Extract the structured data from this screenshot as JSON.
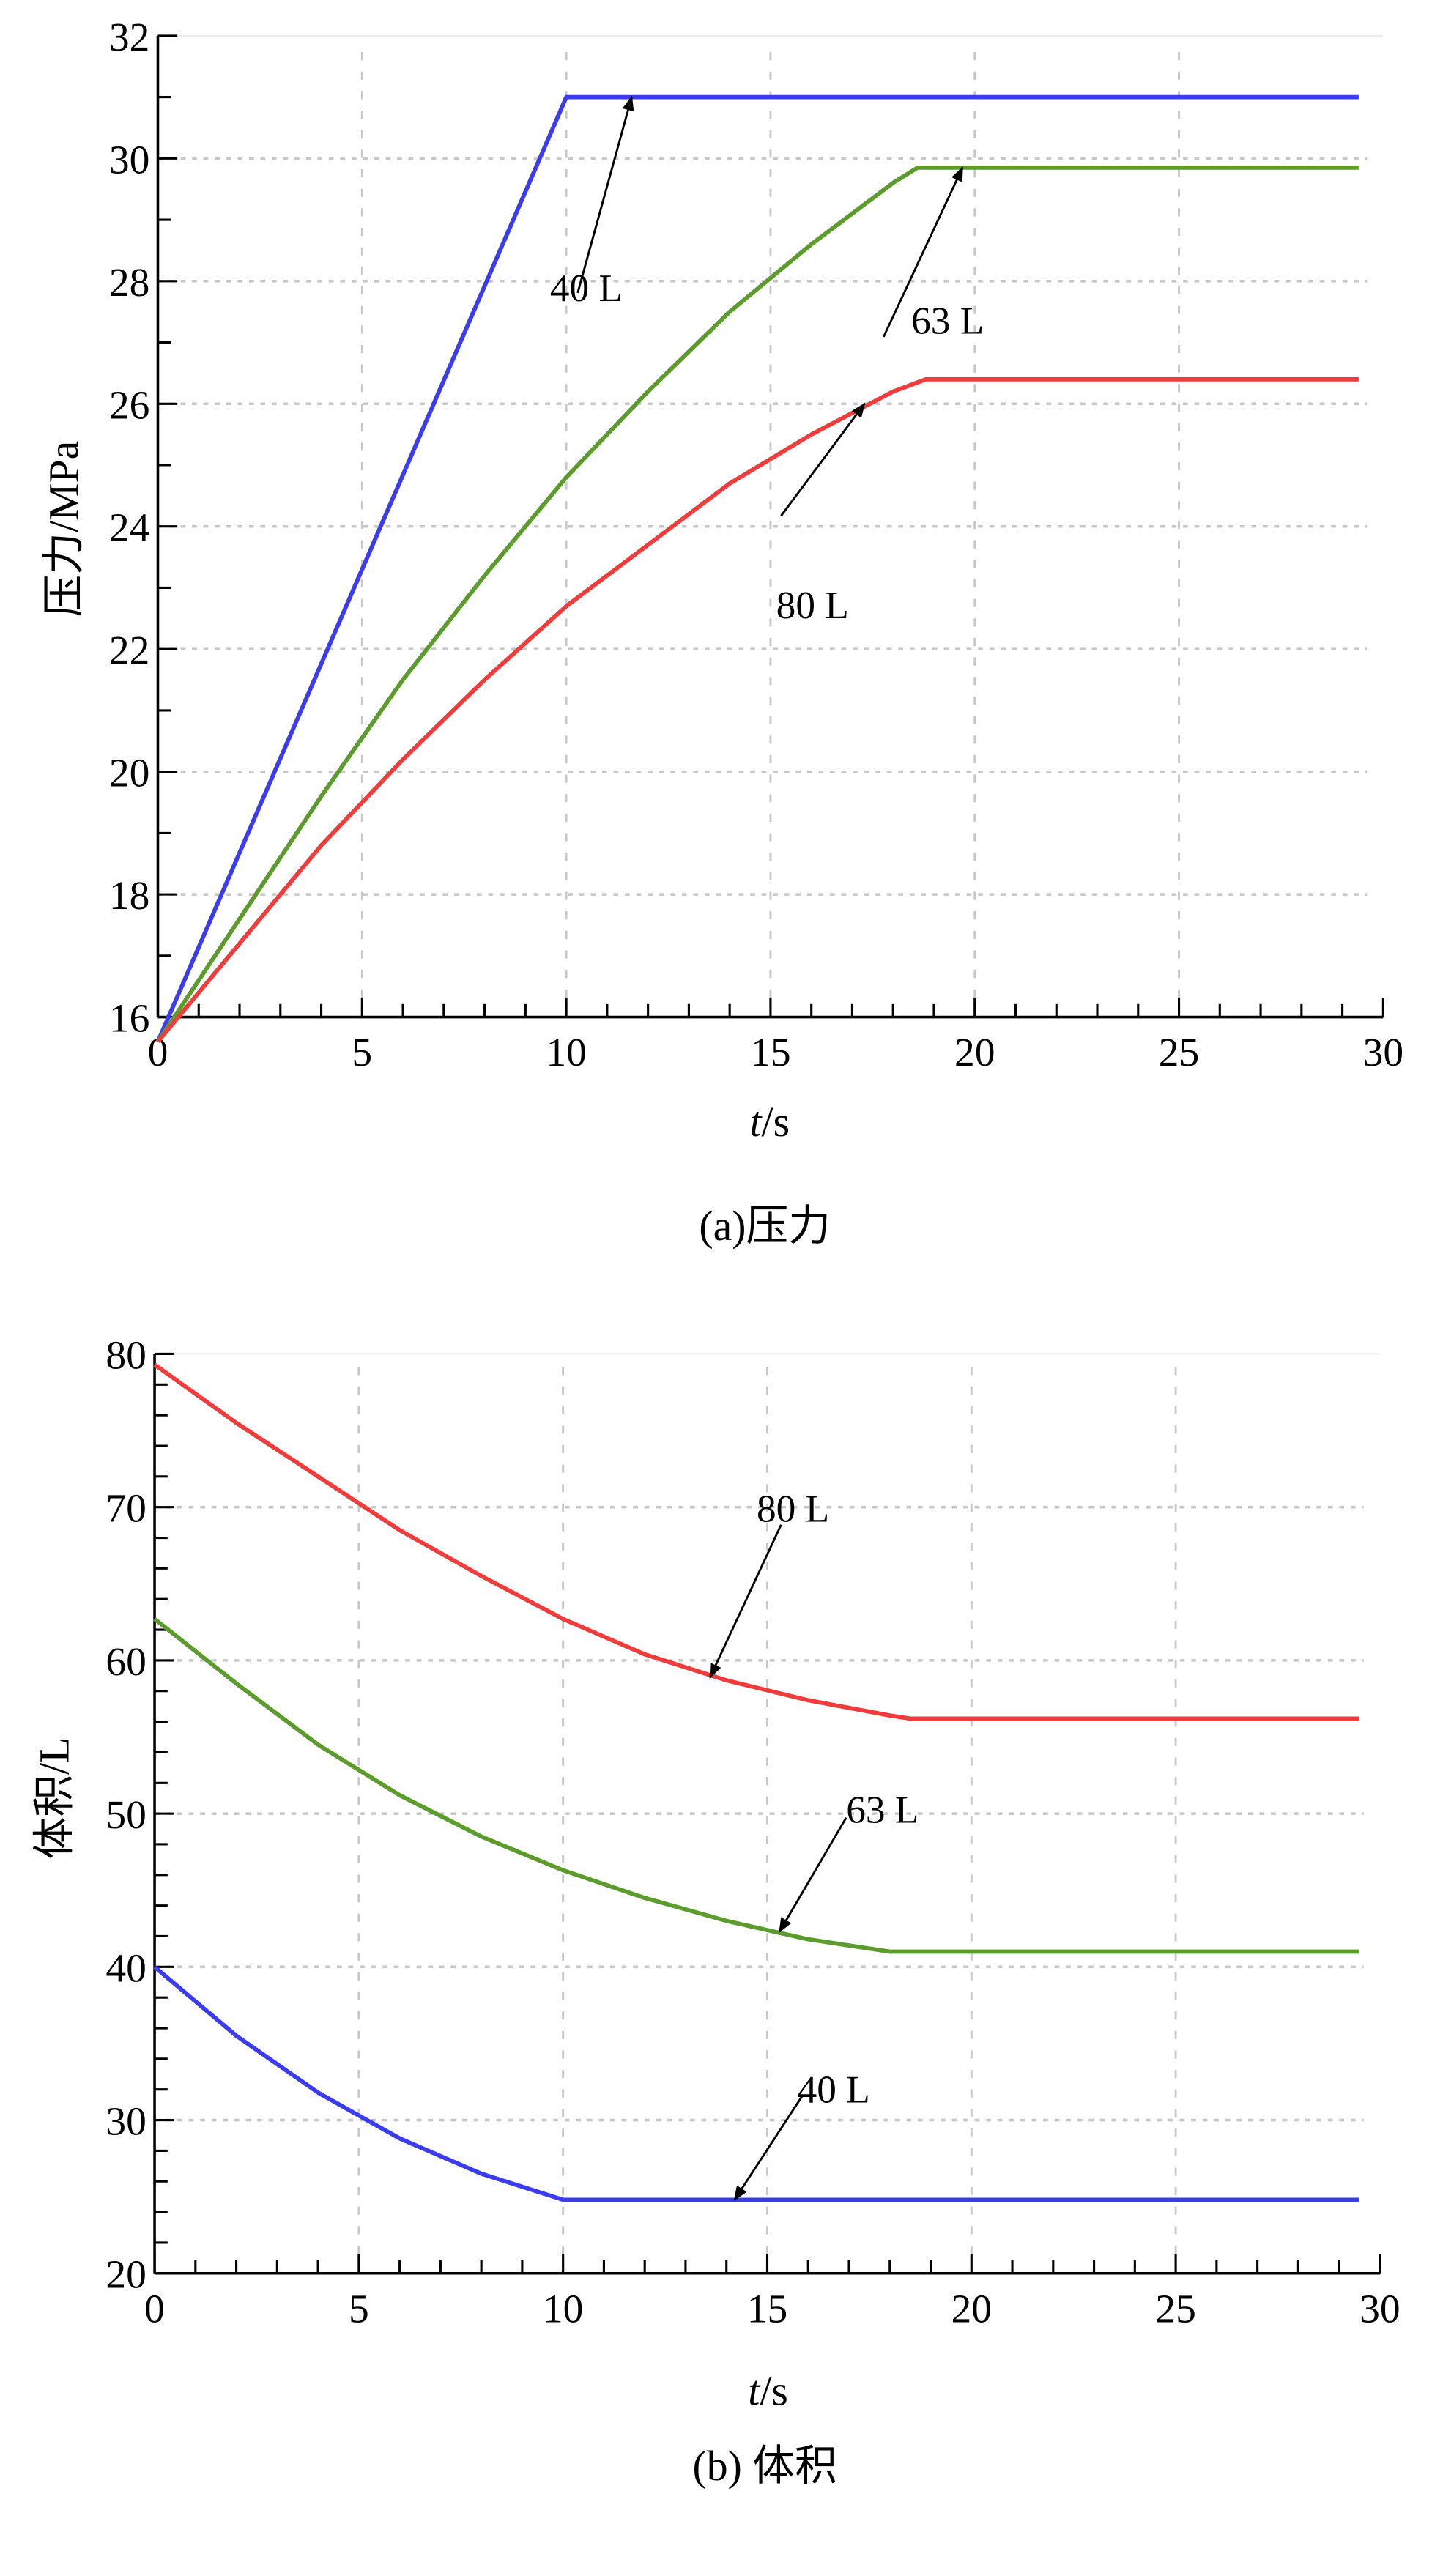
{
  "colors": {
    "40L": "#3b3bf0",
    "63L": "#5c9c2c",
    "80L": "#f23c3c",
    "grid": "#c8c8c8",
    "axis": "#000000"
  },
  "chart_data": [
    {
      "type": "line",
      "title": "(a)压力",
      "xlabel_italic": "t",
      "xlabel_unit": "/s",
      "ylabel": "压力/MPa",
      "xlim": [
        0,
        30
      ],
      "ylim": [
        16,
        32
      ],
      "xticks": [
        "0",
        "5",
        "10",
        "15",
        "20",
        "25",
        "30"
      ],
      "yticks": [
        "16",
        "18",
        "20",
        "22",
        "24",
        "26",
        "28",
        "30",
        "32"
      ],
      "grid": true,
      "series": [
        {
          "name": "40 L",
          "color_key": "40L",
          "t": [
            0,
            10,
            29.4
          ],
          "v": [
            15.6,
            31.0,
            31.0
          ],
          "annotation_at": [
            11.6,
            31.0
          ]
        },
        {
          "name": "63 L",
          "color_key": "63L",
          "t": [
            0,
            2,
            4,
            6,
            8,
            10,
            12,
            14,
            16,
            18,
            18.6,
            29.4
          ],
          "v": [
            15.6,
            17.6,
            19.6,
            21.5,
            23.2,
            24.8,
            26.2,
            27.5,
            28.6,
            29.6,
            29.85,
            29.85
          ],
          "annotation_at": [
            19.7,
            29.85
          ]
        },
        {
          "name": "80 L",
          "color_key": "80L",
          "t": [
            0,
            2,
            4,
            6,
            8,
            10,
            12,
            14,
            16,
            18,
            18.8,
            29.4
          ],
          "v": [
            15.6,
            17.2,
            18.8,
            20.2,
            21.5,
            22.7,
            23.7,
            24.7,
            25.5,
            26.2,
            26.4,
            26.4
          ],
          "annotation_at": [
            17.3,
            26.0
          ]
        }
      ]
    },
    {
      "type": "line",
      "title": "(b) 体积",
      "xlabel_italic": "t",
      "xlabel_unit": "/s",
      "ylabel": "体积/L",
      "xlim": [
        0,
        30
      ],
      "ylim": [
        20,
        80
      ],
      "xticks": [
        "0",
        "5",
        "10",
        "15",
        "20",
        "25",
        "30"
      ],
      "yticks": [
        "20",
        "30",
        "40",
        "50",
        "60",
        "70",
        "80"
      ],
      "grid": true,
      "series": [
        {
          "name": "80 L",
          "color_key": "80L",
          "t": [
            0,
            2,
            4,
            6,
            8,
            10,
            12,
            14,
            16,
            18,
            18.5,
            29.5
          ],
          "v": [
            79.3,
            75.5,
            72,
            68.5,
            65.5,
            62.7,
            60.4,
            58.7,
            57.4,
            56.4,
            56.2,
            56.2
          ],
          "annotation_at": [
            13.6,
            58.9
          ]
        },
        {
          "name": "63 L",
          "color_key": "63L",
          "t": [
            0,
            2,
            4,
            6,
            8,
            10,
            12,
            14,
            16,
            18,
            29.5
          ],
          "v": [
            62.7,
            58.5,
            54.5,
            51.2,
            48.5,
            46.3,
            44.5,
            43,
            41.8,
            41,
            41
          ],
          "annotation_at": [
            15.3,
            42.3
          ]
        },
        {
          "name": "40 L",
          "color_key": "40L",
          "t": [
            0,
            2,
            4,
            6,
            8,
            10,
            29.5
          ],
          "v": [
            40,
            35.5,
            31.8,
            28.8,
            26.5,
            24.8,
            24.8
          ],
          "annotation_at": [
            14.2,
            24.8
          ]
        }
      ]
    }
  ]
}
